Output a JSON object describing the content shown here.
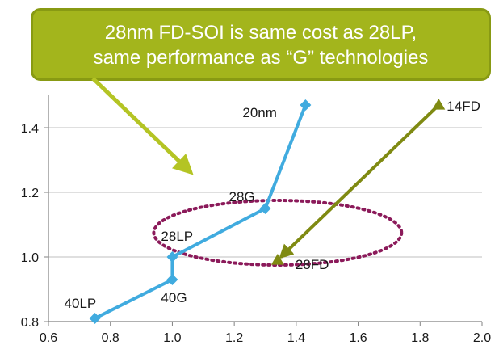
{
  "callout": {
    "line1": "28nm FD-SOI is same cost as 28LP,",
    "line2": "same performance as “G” technologies"
  },
  "colors": {
    "bulk_series": "#40abdf",
    "fdsoi_series": "#7f8a12",
    "callout_fill": "#a3b51c",
    "callout_border": "#889a13",
    "callout_arrow": "#b4c424",
    "ellipse": "#8b1a5a",
    "grid": "#bfbfbf"
  },
  "chart_data": {
    "type": "line",
    "title": "",
    "xlabel": "",
    "ylabel": "",
    "xlim": [
      0.6,
      2.0
    ],
    "ylim": [
      0.8,
      1.5
    ],
    "x_ticks": [
      0.6,
      0.8,
      1.0,
      1.2,
      1.4,
      1.6,
      1.8,
      2.0
    ],
    "x_tick_labels": [
      "0.6",
      "0.8",
      "1.0",
      "1.2",
      "1.4",
      "1.6",
      "1.8",
      "2.0"
    ],
    "y_ticks": [
      0.8,
      1.0,
      1.2,
      1.4
    ],
    "y_tick_labels": [
      "0.8",
      "1.0",
      "1.2",
      "1.4"
    ],
    "grid": "horizontal",
    "series": [
      {
        "marker": "diamond",
        "points": [
          {
            "x": 0.75,
            "y": 0.81,
            "label": "40LP"
          },
          {
            "x": 1.0,
            "y": 0.93,
            "label": "40G"
          },
          {
            "x": 1.0,
            "y": 1.0,
            "label": "28LP"
          },
          {
            "x": 1.3,
            "y": 1.15,
            "label": "28G"
          },
          {
            "x": 1.43,
            "y": 1.47,
            "label": "20nm"
          }
        ]
      },
      {
        "marker": "triangle",
        "arrow": true,
        "points": [
          {
            "x": 1.86,
            "y": 1.47,
            "label": "14FD"
          },
          {
            "x": 1.34,
            "y": 0.99,
            "label": "28FD"
          }
        ]
      }
    ],
    "annotations": [
      {
        "type": "dotted-ellipse",
        "cx": 1.34,
        "cy": 1.075,
        "rx": 0.4,
        "ry": 0.1
      }
    ]
  }
}
